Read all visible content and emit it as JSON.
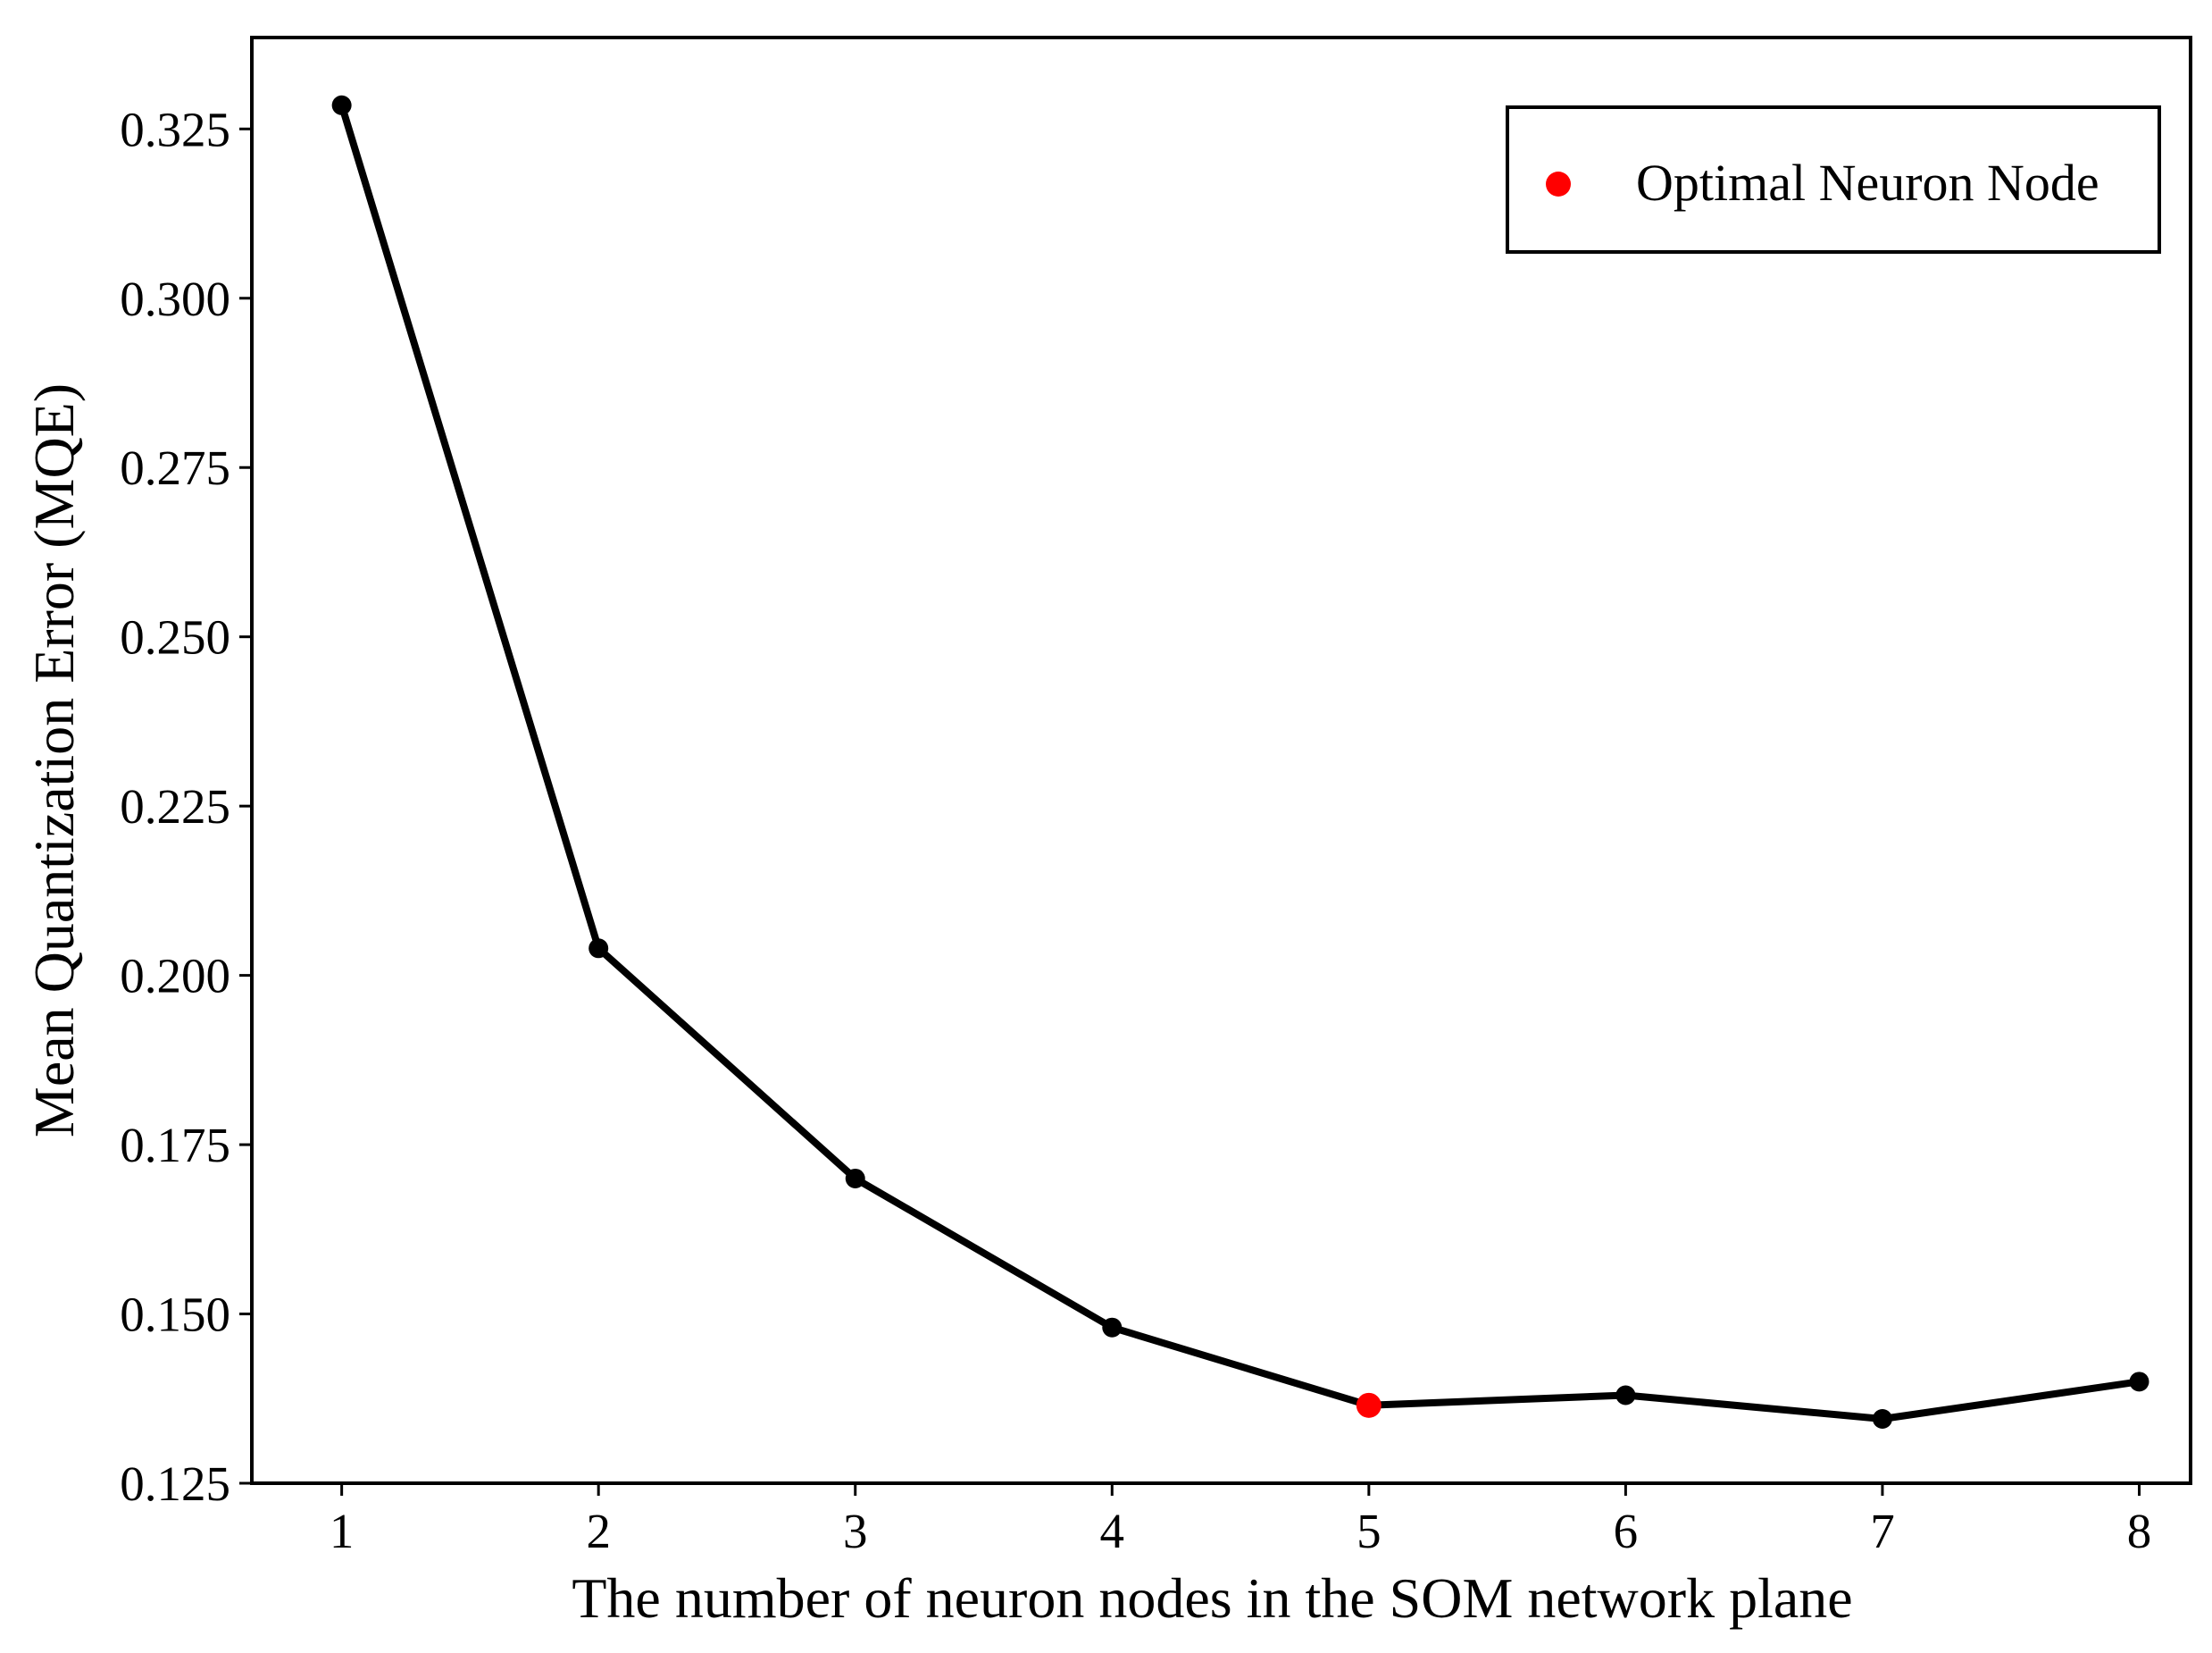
{
  "chart_data": {
    "type": "line",
    "title": "",
    "xlabel": "The number of neuron nodes in the SOM network plane",
    "ylabel": "Mean Quantization Error (MQE)",
    "x": [
      1,
      2,
      3,
      4,
      5,
      6,
      7,
      8
    ],
    "x_ticks": [
      "1",
      "2",
      "3",
      "4",
      "5",
      "6",
      "7",
      "8"
    ],
    "y_ticks": [
      "0.125",
      "0.150",
      "0.175",
      "0.200",
      "0.225",
      "0.250",
      "0.275",
      "0.300",
      "0.325"
    ],
    "xlim": [
      0.65,
      8.2
    ],
    "ylim": [
      0.125,
      0.3385
    ],
    "series": [
      {
        "values": [
          0.3285,
          0.204,
          0.17,
          0.148,
          0.1365,
          0.138,
          0.1345,
          0.14
        ],
        "color": "#000000"
      }
    ],
    "highlight": {
      "x": 5,
      "y": 0.1365,
      "label": "Optimal Neuron Node",
      "color": "#ff0000"
    },
    "grid": false,
    "legend_position": "top-right"
  }
}
